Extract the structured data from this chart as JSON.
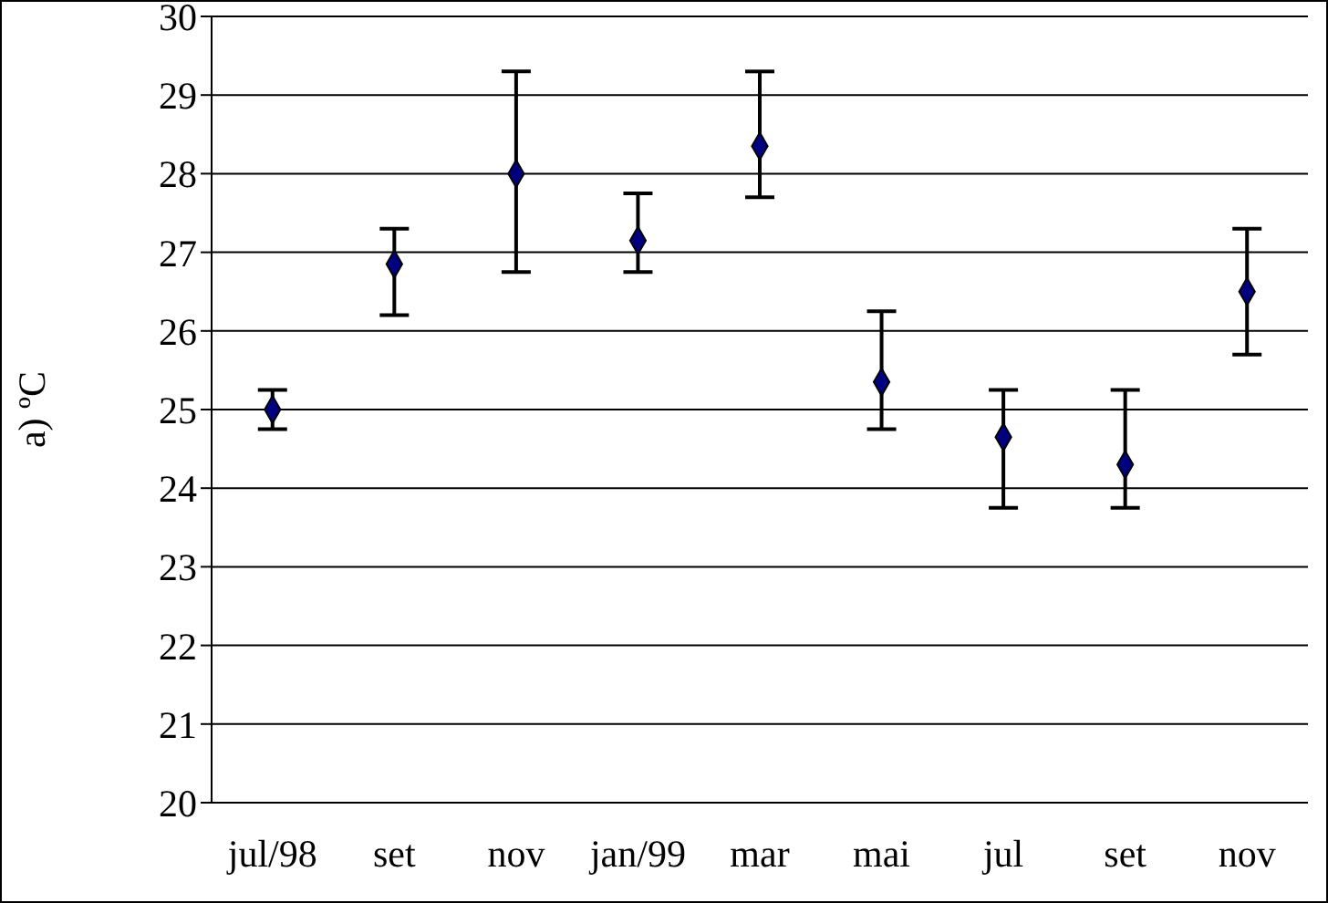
{
  "chart_data": {
    "type": "scatter",
    "ylabel": "a) ºC",
    "categories": [
      "jul/98",
      "set",
      "nov",
      "jan/99",
      "mar",
      "mai",
      "jul",
      "set",
      "nov"
    ],
    "series": [
      {
        "color": "#000080",
        "values": [
          25.0,
          26.85,
          28.0,
          27.15,
          28.35,
          25.35,
          24.65,
          24.3,
          26.5
        ],
        "errors": [
          [
            24.75,
            25.25
          ],
          [
            26.2,
            27.3
          ],
          [
            26.75,
            29.3
          ],
          [
            26.75,
            27.75
          ],
          [
            27.7,
            29.3
          ],
          [
            24.75,
            26.25
          ],
          [
            23.75,
            25.25
          ],
          [
            23.75,
            25.25
          ],
          [
            25.7,
            27.3
          ]
        ]
      }
    ],
    "ylim": [
      20,
      30
    ],
    "yticks": [
      20,
      21,
      22,
      23,
      24,
      25,
      26,
      27,
      28,
      29,
      30
    ],
    "grid": "y",
    "marker": "diamond",
    "legend": false
  }
}
